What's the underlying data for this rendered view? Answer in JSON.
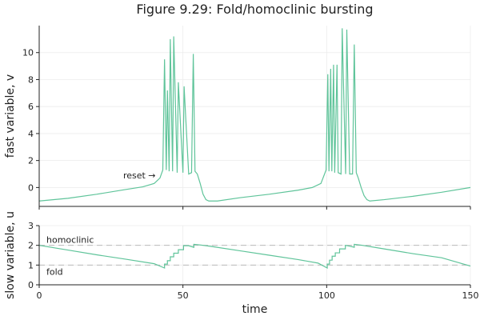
{
  "chart_data": [
    {
      "type": "line",
      "title": "Figure 9.29: Fold/homoclinic bursting",
      "xlabel": "",
      "ylabel": "fast variable, v",
      "xlim": [
        0,
        150
      ],
      "ylim": [
        -1.4,
        12.0
      ],
      "x_ticks": [
        0,
        50,
        100,
        150
      ],
      "y_ticks": [
        0,
        2,
        4,
        6,
        8,
        10
      ],
      "y_tick_labels": [
        "0",
        "2",
        "4",
        "6",
        "8",
        "10"
      ],
      "grid": true,
      "color": "#5fc49a",
      "annotations": [
        {
          "text": "reset →",
          "x": 40.5,
          "y": 0.9
        }
      ],
      "series": [
        {
          "x": [
            0,
            10,
            20,
            30,
            36,
            40,
            42,
            43,
            43.6,
            44.2,
            44.6,
            45.2,
            45.6,
            46.4,
            46.8,
            48,
            48.4,
            50,
            50.4,
            52,
            53,
            53.6,
            54.2,
            55,
            56,
            57,
            58,
            59,
            62,
            70,
            80,
            90,
            95,
            98,
            99.8,
            100.4,
            100.8,
            101.4,
            101.8,
            102.4,
            102.8,
            103.6,
            104,
            105,
            105.4,
            106.6,
            107,
            108,
            109,
            109.6,
            110.3,
            111,
            112,
            113,
            114,
            115,
            120,
            130,
            140,
            150
          ],
          "y": [
            -1.0,
            -0.8,
            -0.5,
            -0.15,
            0.05,
            0.3,
            0.7,
            1.3,
            9.5,
            1.3,
            7.2,
            1.2,
            11.0,
            1.2,
            11.2,
            1.1,
            7.8,
            1.1,
            7.5,
            1.0,
            1.1,
            9.9,
            1.2,
            1.0,
            0.3,
            -0.5,
            -0.9,
            -1.0,
            -1.0,
            -0.75,
            -0.5,
            -0.2,
            0.0,
            0.3,
            1.3,
            8.4,
            1.2,
            8.8,
            1.2,
            9.1,
            1.1,
            9.1,
            1.1,
            1.0,
            11.8,
            1.0,
            11.7,
            1.0,
            1.0,
            10.6,
            1.1,
            0.7,
            0.0,
            -0.6,
            -0.9,
            -1.0,
            -0.9,
            -0.65,
            -0.35,
            0.0
          ]
        }
      ]
    },
    {
      "type": "line",
      "title": "",
      "xlabel": "time",
      "ylabel": "slow variable, u",
      "xlim": [
        0,
        150
      ],
      "ylim": [
        0,
        3
      ],
      "x_ticks": [
        0,
        50,
        100,
        150
      ],
      "x_tick_labels": [
        "0",
        "50",
        "100",
        "150"
      ],
      "y_ticks": [
        0,
        1,
        2,
        3
      ],
      "y_tick_labels": [
        "0",
        "1",
        "2",
        "3"
      ],
      "grid": true,
      "color": "#5fc49a",
      "reference_lines": [
        {
          "label": "homoclinic",
          "y": 2
        },
        {
          "label": "fold",
          "y": 1
        }
      ],
      "series": [
        {
          "x": [
            0,
            10,
            20,
            30,
            40,
            43.6,
            43.6,
            44.6,
            44.6,
            45.6,
            45.6,
            46.8,
            46.8,
            48.4,
            48.4,
            50.2,
            50.2,
            52,
            53.8,
            53.8,
            56,
            60,
            70,
            80,
            90,
            97,
            100.2,
            100.2,
            101,
            101,
            101.9,
            101.9,
            103,
            103,
            104.5,
            104.5,
            106.5,
            106.5,
            108,
            109.6,
            109.6,
            112,
            120,
            130,
            140,
            150
          ],
          "y": [
            2.0,
            1.76,
            1.52,
            1.3,
            1.07,
            0.85,
            1.05,
            1.05,
            1.22,
            1.22,
            1.42,
            1.42,
            1.6,
            1.6,
            1.78,
            1.78,
            1.98,
            1.98,
            1.9,
            2.05,
            2.02,
            1.94,
            1.72,
            1.5,
            1.28,
            1.1,
            0.85,
            1.05,
            1.05,
            1.25,
            1.25,
            1.45,
            1.45,
            1.62,
            1.62,
            1.82,
            1.82,
            2.0,
            1.96,
            1.9,
            2.05,
            2.01,
            1.82,
            1.58,
            1.37,
            0.95
          ]
        }
      ]
    }
  ]
}
